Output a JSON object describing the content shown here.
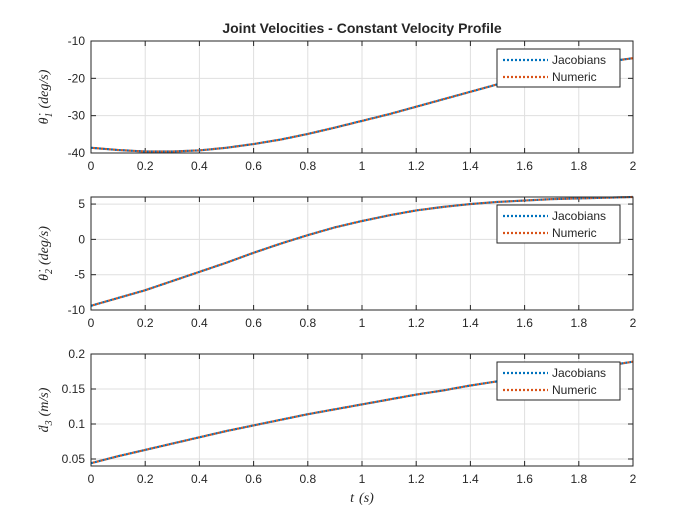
{
  "chart_data": [
    {
      "type": "line",
      "title": "Joint Velocities - Constant Velocity Profile",
      "ylabel": {
        "symbol": "θ̇",
        "sub": "1",
        "unit": "(deg/s)"
      },
      "xlim": [
        0,
        2
      ],
      "ylim": [
        -40,
        -10
      ],
      "xticks": [
        "0",
        "0.2",
        "0.4",
        "0.6",
        "0.8",
        "1",
        "1.2",
        "1.4",
        "1.6",
        "1.8",
        "2"
      ],
      "yticks": [
        "-10",
        "-20",
        "-30",
        "-40"
      ],
      "grid": true,
      "legend_position": "top-right",
      "x": [
        0,
        0.1,
        0.2,
        0.3,
        0.4,
        0.5,
        0.6,
        0.7,
        0.8,
        0.9,
        1.0,
        1.1,
        1.2,
        1.3,
        1.4,
        1.5,
        1.6,
        1.7,
        1.8,
        1.9,
        2.0
      ],
      "series": [
        {
          "name": "Jacobians",
          "color": "#0072BD",
          "values": [
            -38.6,
            -39.2,
            -39.6,
            -39.6,
            -39.3,
            -38.6,
            -37.6,
            -36.4,
            -34.9,
            -33.2,
            -31.4,
            -29.6,
            -27.6,
            -25.6,
            -23.6,
            -21.6,
            -19.8,
            -18.2,
            -16.8,
            -15.6,
            -14.6
          ]
        },
        {
          "name": "Numeric",
          "color": "#D95319",
          "values": [
            -38.6,
            -39.2,
            -39.6,
            -39.6,
            -39.3,
            -38.6,
            -37.6,
            -36.4,
            -34.9,
            -33.2,
            -31.4,
            -29.6,
            -27.6,
            -25.6,
            -23.6,
            -21.6,
            -19.8,
            -18.2,
            -16.8,
            -15.6,
            -14.6
          ]
        }
      ]
    },
    {
      "type": "line",
      "ylabel": {
        "symbol": "θ̇",
        "sub": "2",
        "unit": "(deg/s)"
      },
      "xlim": [
        0,
        2
      ],
      "ylim": [
        -10,
        6
      ],
      "xticks": [
        "0",
        "0.2",
        "0.4",
        "0.6",
        "0.8",
        "1",
        "1.2",
        "1.4",
        "1.6",
        "1.8",
        "2"
      ],
      "yticks": [
        "5",
        "0",
        "-5",
        "-10"
      ],
      "grid": true,
      "legend_position": "top-right",
      "x": [
        0,
        0.1,
        0.2,
        0.3,
        0.4,
        0.5,
        0.6,
        0.7,
        0.8,
        0.9,
        1.0,
        1.1,
        1.2,
        1.3,
        1.4,
        1.5,
        1.6,
        1.7,
        1.8,
        1.9,
        2.0
      ],
      "series": [
        {
          "name": "Jacobians",
          "color": "#0072BD",
          "values": [
            -9.4,
            -8.3,
            -7.2,
            -5.9,
            -4.6,
            -3.3,
            -1.9,
            -0.6,
            0.6,
            1.7,
            2.6,
            3.4,
            4.1,
            4.6,
            5.0,
            5.3,
            5.5,
            5.7,
            5.8,
            5.9,
            6.0
          ]
        },
        {
          "name": "Numeric",
          "color": "#D95319",
          "values": [
            -9.4,
            -8.3,
            -7.2,
            -5.9,
            -4.6,
            -3.3,
            -1.9,
            -0.6,
            0.6,
            1.7,
            2.6,
            3.4,
            4.1,
            4.6,
            5.0,
            5.3,
            5.5,
            5.7,
            5.8,
            5.9,
            6.0
          ]
        }
      ]
    },
    {
      "type": "line",
      "ylabel": {
        "symbol": "ḋ",
        "sub": "3",
        "unit": "(m/s)"
      },
      "xlabel": {
        "symbol": "t",
        "unit": "(s)"
      },
      "xlim": [
        0,
        2
      ],
      "ylim": [
        0.04,
        0.2
      ],
      "xticks": [
        "0",
        "0.2",
        "0.4",
        "0.6",
        "0.8",
        "1",
        "1.2",
        "1.4",
        "1.6",
        "1.8",
        "2"
      ],
      "yticks": [
        "0.2",
        "0.15",
        "0.1",
        "0.05"
      ],
      "grid": true,
      "legend_position": "top-right",
      "x": [
        0,
        0.1,
        0.2,
        0.3,
        0.4,
        0.5,
        0.6,
        0.7,
        0.8,
        0.9,
        1.0,
        1.1,
        1.2,
        1.3,
        1.4,
        1.5,
        1.6,
        1.7,
        1.8,
        1.9,
        2.0
      ],
      "series": [
        {
          "name": "Jacobians",
          "color": "#0072BD",
          "values": [
            0.044,
            0.054,
            0.063,
            0.072,
            0.081,
            0.09,
            0.098,
            0.106,
            0.114,
            0.121,
            0.128,
            0.135,
            0.142,
            0.148,
            0.155,
            0.161,
            0.167,
            0.173,
            0.178,
            0.183,
            0.189
          ]
        },
        {
          "name": "Numeric",
          "color": "#D95319",
          "values": [
            0.044,
            0.054,
            0.063,
            0.072,
            0.081,
            0.09,
            0.098,
            0.106,
            0.114,
            0.121,
            0.128,
            0.135,
            0.142,
            0.148,
            0.155,
            0.161,
            0.167,
            0.173,
            0.178,
            0.183,
            0.189
          ]
        }
      ]
    }
  ]
}
